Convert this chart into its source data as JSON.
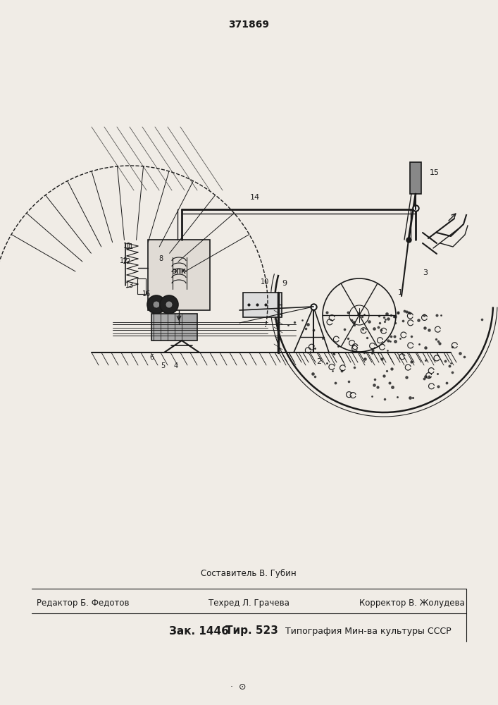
{
  "patent_number": "371869",
  "bg_color": "#f0ece6",
  "line_color": "#1a1a1a",
  "footer_line1": "Составитель В. Губин",
  "footer_line2_left": "Редактор Б. Федотов",
  "footer_line2_mid": "Техред Л. Грачева",
  "footer_line2_right": "Корректор В. Жолудева",
  "footer_zak": "Зак. 1446",
  "footer_tir": "Тир. 523",
  "footer_tip": "  Типография Мин-ва культуры СССР"
}
